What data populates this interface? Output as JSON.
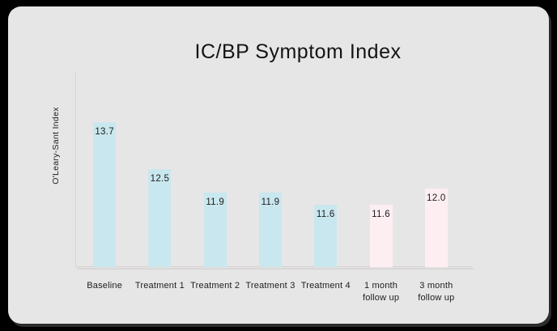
{
  "page": {
    "outer_background": "#000000",
    "card_background": "#e7e6e6",
    "text_color": "#1d1d1d"
  },
  "chart_data": {
    "type": "bar",
    "title": "IC/BP Symptom Index",
    "xlabel": "",
    "ylabel": "O'Leary-Sant Index",
    "categories": [
      "Baseline",
      "Treatment 1",
      "Treatment 2",
      "Treatment 3",
      "Treatment 4",
      "1 month\nfollow up",
      "3 month\nfollow up"
    ],
    "values": [
      13.7,
      12.5,
      11.9,
      11.9,
      11.6,
      11.6,
      12.0
    ],
    "value_labels": [
      "13.7",
      "12.5",
      "11.9",
      "11.9",
      "11.6",
      "11.6",
      "12.0"
    ],
    "bar_colors": [
      "#c9e7ee",
      "#c9e7ee",
      "#c9e7ee",
      "#c9e7ee",
      "#c9e7ee",
      "#fdeef2",
      "#fdeef2"
    ],
    "accent_blue": "#c9e7ee",
    "accent_pink": "#fdeef2",
    "ylim": [
      10,
      15
    ],
    "grid": false,
    "legend_position": "none",
    "value_labels_position": "inside-top"
  }
}
